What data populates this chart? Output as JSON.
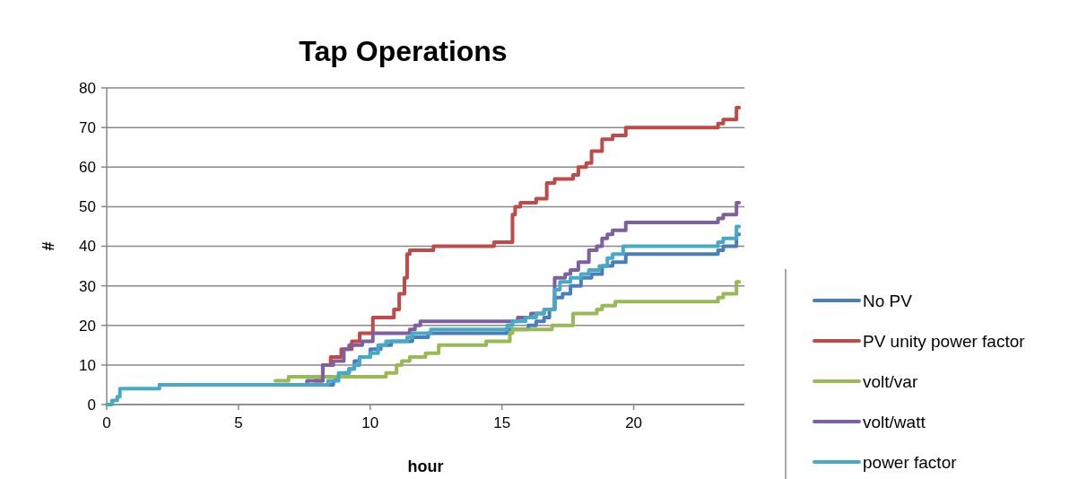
{
  "chart_data": {
    "type": "step",
    "title": "Tap Operations",
    "xlabel": "hour",
    "ylabel": "#",
    "xlim": [
      0,
      24.2
    ],
    "xticks": [
      0,
      5,
      10,
      15,
      20
    ],
    "ylim": [
      0,
      80
    ],
    "yticks": [
      0,
      10,
      20,
      30,
      40,
      50,
      60,
      70,
      80
    ],
    "grid": "y",
    "legend": "right",
    "line_style": "solid",
    "marker": "none",
    "series": [
      {
        "name": "No PV",
        "color": "#4a7ebb",
        "x": [
          2,
          8.6,
          8.7,
          9,
          9.2,
          9.4,
          9.6,
          10,
          10.4,
          10.8,
          11.6,
          12.2,
          15.2,
          16,
          16.3,
          16.6,
          16.8,
          17,
          17.3,
          17.6,
          18,
          18.4,
          18.8,
          19.2,
          19.7,
          23.2,
          23.4,
          23.9,
          24
        ],
        "values": [
          5,
          6,
          7,
          8,
          9,
          11,
          12,
          14,
          15,
          16,
          17,
          18,
          19,
          20,
          21,
          22,
          24,
          27,
          28,
          30,
          32,
          33,
          35,
          36,
          38,
          39,
          40,
          43,
          43
        ]
      },
      {
        "name": "PV unity power factor",
        "color": "#be4b48",
        "x": [
          7.9,
          8.2,
          8.5,
          8.9,
          9.3,
          9.6,
          10.1,
          10.9,
          11.1,
          11.3,
          11.4,
          11.5,
          12.4,
          14.7,
          15.4,
          15.5,
          15.7,
          16.3,
          16.7,
          17,
          17.7,
          17.9,
          18.2,
          18.4,
          18.8,
          19.2,
          19.7,
          23.2,
          23.4,
          23.9,
          24
        ],
        "values": [
          6,
          10,
          12,
          14,
          16,
          18,
          22,
          24,
          28,
          32,
          38,
          39,
          40,
          41,
          48,
          50,
          51,
          52,
          56,
          57,
          58,
          60,
          61,
          64,
          67,
          68,
          70,
          71,
          72,
          75,
          75
        ]
      },
      {
        "name": "volt/var",
        "color": "#98b954",
        "x": [
          6.4,
          6.9,
          10.6,
          11,
          11.2,
          11.5,
          12.1,
          12.6,
          14.4,
          15.3,
          15.4,
          16.9,
          17.7,
          18.6,
          18.8,
          19.3,
          23.2,
          23.4,
          23.9,
          24
        ],
        "values": [
          6,
          7,
          8,
          10,
          11,
          12,
          13,
          15,
          16,
          18,
          19,
          20,
          23,
          24,
          25,
          26,
          27,
          28,
          31,
          31
        ]
      },
      {
        "name": "volt/watt",
        "color": "#7d60a0",
        "x": [
          2,
          7.6,
          8.2,
          8.6,
          9,
          9.2,
          9.7,
          10.1,
          11.5,
          11.7,
          11.9,
          15.6,
          16.1,
          16.6,
          17,
          17.4,
          17.6,
          17.9,
          18.3,
          18.6,
          18.8,
          19,
          19.2,
          19.7,
          23.2,
          23.4,
          23.9,
          24
        ],
        "values": [
          5,
          6,
          10,
          11,
          14,
          15,
          16,
          18,
          19,
          20,
          21,
          22,
          23,
          24,
          32,
          33,
          34,
          36,
          39,
          40,
          42,
          43,
          44,
          46,
          47,
          48,
          51,
          51
        ]
      },
      {
        "name": "power factor",
        "color": "#46aac5",
        "x": [
          0,
          0.2,
          0.4,
          0.5,
          2,
          8.4,
          8.8,
          9.2,
          9.4,
          9.6,
          10,
          10.3,
          10.6,
          11.4,
          11.6,
          12.3,
          15.2,
          15.4,
          15.9,
          16.3,
          16.6,
          17,
          17.2,
          17.6,
          18,
          18.3,
          18.7,
          19,
          19.2,
          19.6,
          23.2,
          23.4,
          23.9,
          24
        ],
        "values": [
          0,
          1,
          2,
          4,
          5,
          6,
          8,
          9,
          10,
          12,
          13,
          15,
          16,
          17,
          18,
          19,
          20,
          21,
          22,
          23,
          24,
          29,
          31,
          32,
          33,
          34,
          35,
          37,
          38,
          40,
          41,
          42,
          45,
          45
        ]
      }
    ]
  }
}
